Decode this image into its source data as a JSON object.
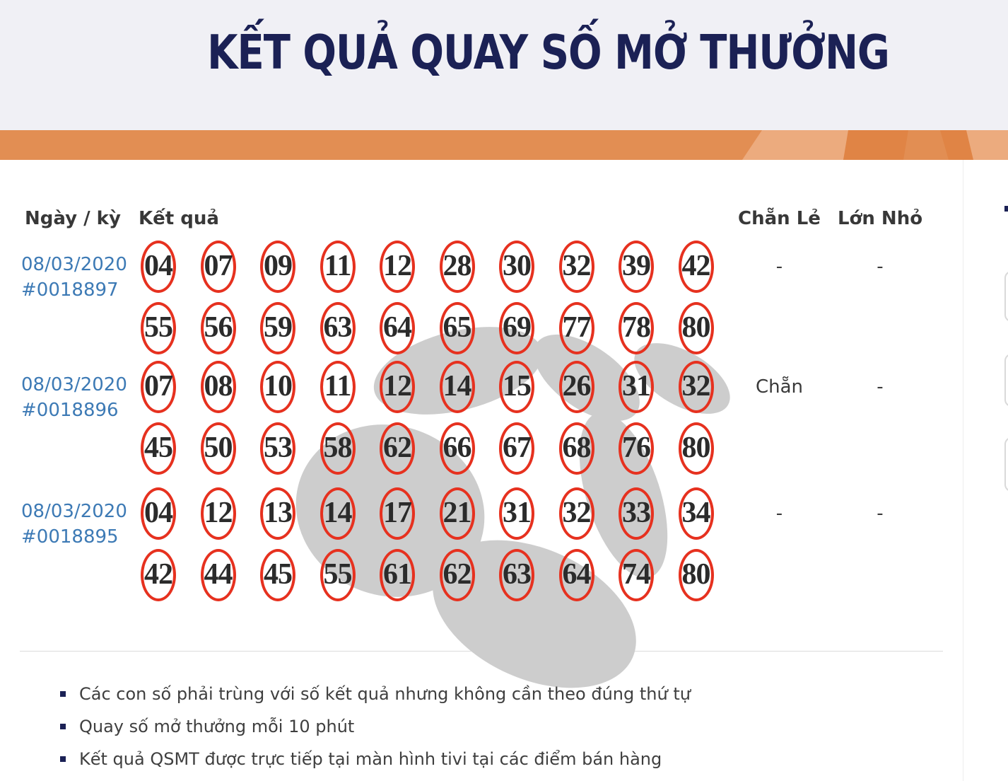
{
  "title": "KẾT QUẢ QUAY SỐ MỞ THƯỞNG",
  "table": {
    "headers": {
      "date": "Ngày / kỳ",
      "result": "Kết quả",
      "chan_le": "Chẵn Lẻ",
      "lon_nho": "Lớn Nhỏ"
    },
    "rows": [
      {
        "date": "08/03/2020",
        "draw": "#0018897",
        "line1": [
          "04",
          "07",
          "09",
          "11",
          "12",
          "28",
          "30",
          "32",
          "39",
          "42"
        ],
        "line2": [
          "55",
          "56",
          "59",
          "63",
          "64",
          "65",
          "69",
          "77",
          "78",
          "80"
        ],
        "chan_le": "-",
        "lon_nho": "-"
      },
      {
        "date": "08/03/2020",
        "draw": "#0018896",
        "line1": [
          "07",
          "08",
          "10",
          "11",
          "12",
          "14",
          "15",
          "26",
          "31",
          "32"
        ],
        "line2": [
          "45",
          "50",
          "53",
          "58",
          "62",
          "66",
          "67",
          "68",
          "76",
          "80"
        ],
        "chan_le": "Chẵn",
        "lon_nho": "-"
      },
      {
        "date": "08/03/2020",
        "draw": "#0018895",
        "line1": [
          "04",
          "12",
          "13",
          "14",
          "17",
          "21",
          "31",
          "32",
          "33",
          "34"
        ],
        "line2": [
          "42",
          "44",
          "45",
          "55",
          "61",
          "62",
          "63",
          "64",
          "74",
          "80"
        ],
        "chan_le": "-",
        "lon_nho": "-"
      }
    ]
  },
  "notes": [
    "Các con số phải trùng với số kết quả nhưng không cần theo đúng thứ tự",
    "Quay số mở thưởng mỗi 10 phút",
    "Kết quả QSMT được trực tiếp tại màn hình tivi tại các điểm bán hàng"
  ],
  "colors": {
    "title_navy": "#1b2155",
    "banner_orange": "#e28e53",
    "banner_orange_light": "#ecab7e",
    "banner_orange_dark": "#e08445",
    "date_blue": "#3d7ab5",
    "circle_red": "#e6311f",
    "number_black": "#2b2b2b",
    "text_dark": "#3c3c3c",
    "watermark_gray": "#cdcdcd",
    "header_bg": "#f0f0f5"
  }
}
